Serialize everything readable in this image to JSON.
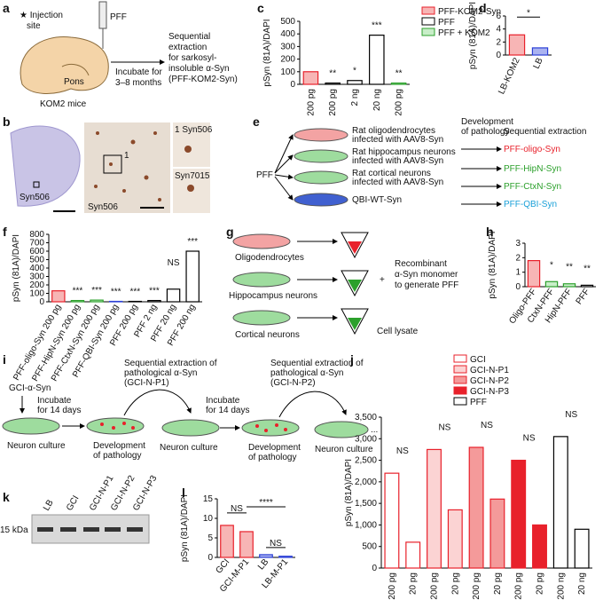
{
  "panel_labels": [
    "a",
    "b",
    "c",
    "d",
    "e",
    "f",
    "g",
    "h",
    "i",
    "j",
    "k",
    "l"
  ],
  "diagram": {
    "a": {
      "injection": [
        "★ Injection",
        "site"
      ],
      "pff": "PFF",
      "pons": "Pons",
      "mice": "KOM2 mice",
      "incubate": [
        "Incubate for",
        "3–8 months"
      ],
      "extraction": [
        "Sequential",
        "extraction",
        "for sarkosyl-",
        "insoluble α-Syn",
        "(PFF-KOM2-Syn)"
      ]
    },
    "b": {
      "slice": "Syn506",
      "field": "Syn506",
      "box": "1",
      "inset1": "1  Syn506",
      "inset2": "Syn7015"
    },
    "e": {
      "pff": "PFF",
      "header1": [
        "Development",
        "of pathology"
      ],
      "header2": "Sequential extraction",
      "rows": [
        [
          "Rat oligodendrocytes",
          "infected with AAV8-Syn"
        ],
        [
          "Rat hippocampus neurons",
          "infected with AAV8-Syn"
        ],
        [
          "Rat cortical neurons",
          "infected with AAV8-Syn"
        ],
        [
          "QBI-WT-Syn"
        ]
      ],
      "products": [
        "PFF-oligo-Syn",
        "PFF-HipN-Syn",
        "PFF-CtxN-Syn",
        "PFF-QBI-Syn"
      ]
    },
    "g": {
      "cells": [
        "Oligodendrocytes",
        "Hippocampus neurons",
        "Cortical neurons"
      ],
      "plus": "+",
      "recombinant": [
        "Recombinant",
        "α-Syn monomer",
        "to generate PFF"
      ],
      "lysate": "Cell lysate"
    },
    "i": {
      "gci": "GCI-α-Syn",
      "culture1": "Neuron culture",
      "incubate1": [
        "Incubate",
        "for 14 days"
      ],
      "dev1": [
        "Development",
        "of pathology"
      ],
      "extract1": [
        "Sequential extraction of",
        "pathological α-Syn",
        "(GCI-N-P1)"
      ],
      "culture2": "Neuron culture",
      "incubate2": [
        "Incubate",
        "for 14 days"
      ],
      "dev2": [
        "Development",
        "of pathology"
      ],
      "extract2": [
        "Sequential extraction of",
        "pathological α-Syn",
        "(GCI-N-P2)"
      ],
      "culture3": "Neuron culture",
      "more": "..."
    },
    "k": {
      "lanes": [
        "LB",
        "GCI",
        "GCI-N-P1",
        "GCI-N-P2",
        "GCI-N-P3"
      ],
      "marker": "15 kDa"
    }
  },
  "chart_data": [
    {
      "type": "bar",
      "y_label": "pSyn (81A)/DAPI",
      "categories": [
        "200 pg",
        "200 pg",
        "2 ng",
        "20 ng",
        "200 pg"
      ],
      "series": [
        {
          "name": "PFF-KOM2-Syn",
          "color": "#e8212b",
          "fill": "#f7b5b5",
          "values": [
            100,
            null,
            null,
            null,
            null
          ]
        },
        {
          "name": "PFF",
          "color": "#000000",
          "fill": "#ffffff",
          "values": [
            null,
            10,
            30,
            390,
            null
          ]
        },
        {
          "name": "PFF + KOM2",
          "color": "#2ca02c",
          "fill": "#c8eec8",
          "values": [
            null,
            null,
            null,
            null,
            10
          ]
        }
      ],
      "ylim": [
        0,
        500
      ],
      "yticks": [
        0,
        100,
        200,
        300,
        400,
        500
      ],
      "annotations": [
        "**",
        "*",
        "***",
        "**"
      ]
    },
    {
      "type": "bar",
      "y_label": "pSyn (81A)/DAPI",
      "categories": [
        "LB-KOM2",
        "LB"
      ],
      "values": [
        3.1,
        1.1
      ],
      "colors": [
        "#e8212b",
        "#2b3fd6"
      ],
      "fills": [
        "#f7b5b5",
        "#aab3f0"
      ],
      "ylim": [
        0,
        6
      ],
      "yticks": [
        0,
        2,
        4,
        6
      ],
      "annotations": [
        "*"
      ]
    },
    {
      "type": "bar",
      "y_label": "pSyn (81A)/DAPI",
      "categories": [
        "PFF-oligo-Syn 200 pg",
        "PFF-HipN-Syn 200 pg",
        "PFF-CtxN-Syn 200 pg",
        "PFF-QBI-Syn 200 pg",
        "PFF 200 pg",
        "PFF 2 ng",
        "PFF 20 ng",
        "PFF 200 ng"
      ],
      "values": [
        130,
        15,
        20,
        5,
        5,
        15,
        150,
        600
      ],
      "colors": [
        "#e8212b",
        "#2ca02c",
        "#2ca02c",
        "#2b3fd6",
        "#000000",
        "#000000",
        "#000000",
        "#000000"
      ],
      "fills": [
        "#f7b5b5",
        "#c8eec8",
        "#c8eec8",
        "#aab3f0",
        "#ffffff",
        "#ffffff",
        "#ffffff",
        "#ffffff"
      ],
      "ylim": [
        0,
        800
      ],
      "yticks": [
        0,
        100,
        200,
        300,
        400,
        500,
        600,
        700,
        800
      ],
      "annotations": [
        "***",
        "***",
        "***",
        "***",
        "***",
        "NS",
        "***"
      ]
    },
    {
      "type": "bar",
      "y_label": "pSyn (81A)/DAPI",
      "categories": [
        "Oligo-PFF",
        "CtxN-PFF",
        "HipN-PFF",
        "PFF"
      ],
      "values": [
        1.8,
        0.35,
        0.2,
        0.1
      ],
      "colors": [
        "#e8212b",
        "#2ca02c",
        "#2ca02c",
        "#000000"
      ],
      "fills": [
        "#f7b5b5",
        "#c8eec8",
        "#c8eec8",
        "#ffffff"
      ],
      "ylim": [
        0,
        3
      ],
      "yticks": [
        0,
        1,
        2,
        3
      ],
      "annotations": [
        "*",
        "**",
        "**"
      ]
    },
    {
      "type": "bar",
      "y_label": "pSyn (81A)/DAPI",
      "categories": [
        "200 pg",
        "20 pg",
        "200 pg",
        "20 pg",
        "200 pg",
        "20 pg",
        "200 pg",
        "20 pg",
        "200 ng",
        "20 ng"
      ],
      "series": [
        {
          "name": "GCI",
          "color": "#e8212b",
          "fill": "#ffffff",
          "values": [
            2200,
            600,
            null,
            null,
            null,
            null,
            null,
            null,
            null,
            null
          ]
        },
        {
          "name": "GCI-N-P1",
          "color": "#e8212b",
          "fill": "#fbd3d3",
          "values": [
            null,
            null,
            2750,
            1350,
            null,
            null,
            null,
            null,
            null,
            null
          ]
        },
        {
          "name": "GCI-N-P2",
          "color": "#e8212b",
          "fill": "#f49a9a",
          "values": [
            null,
            null,
            null,
            null,
            2800,
            1600,
            null,
            null,
            null,
            null
          ]
        },
        {
          "name": "GCI-N-P3",
          "color": "#e8212b",
          "fill": "#e8212b",
          "values": [
            null,
            null,
            null,
            null,
            null,
            null,
            2500,
            1000,
            null,
            null
          ]
        },
        {
          "name": "PFF",
          "color": "#000000",
          "fill": "#ffffff",
          "values": [
            null,
            null,
            null,
            null,
            null,
            null,
            null,
            null,
            3050,
            900
          ]
        }
      ],
      "ylim": [
        0,
        3500
      ],
      "yticks": [
        0,
        500,
        {
          "value": 1000,
          "label": "1,000"
        },
        {
          "value": 1500,
          "label": "1,500"
        },
        {
          "value": 2000,
          "label": "2,000"
        },
        {
          "value": 2500,
          "label": "2,500"
        },
        {
          "value": 3000,
          "label": "3,000"
        },
        {
          "value": 3500,
          "label": "3,500"
        }
      ],
      "annotations": [
        "NS",
        "NS",
        "NS",
        "NS",
        "NS"
      ]
    },
    {
      "type": "bar",
      "y_label": "pSyn (81A)/DAPI",
      "categories": [
        "GCI",
        "GCI-M-P1",
        "LB",
        "LB-M-P1"
      ],
      "values": [
        8.2,
        6.6,
        0.7,
        0.3
      ],
      "colors": [
        "#e8212b",
        "#e8212b",
        "#2b3fd6",
        "#2b3fd6"
      ],
      "fills": [
        "#f7b5b5",
        "#f7b5b5",
        "#aab3f0",
        "#aab3f0"
      ],
      "ylim": [
        0,
        15
      ],
      "yticks": [
        0,
        5,
        10,
        15
      ],
      "annotations": [
        "NS",
        "****",
        "NS"
      ]
    }
  ]
}
